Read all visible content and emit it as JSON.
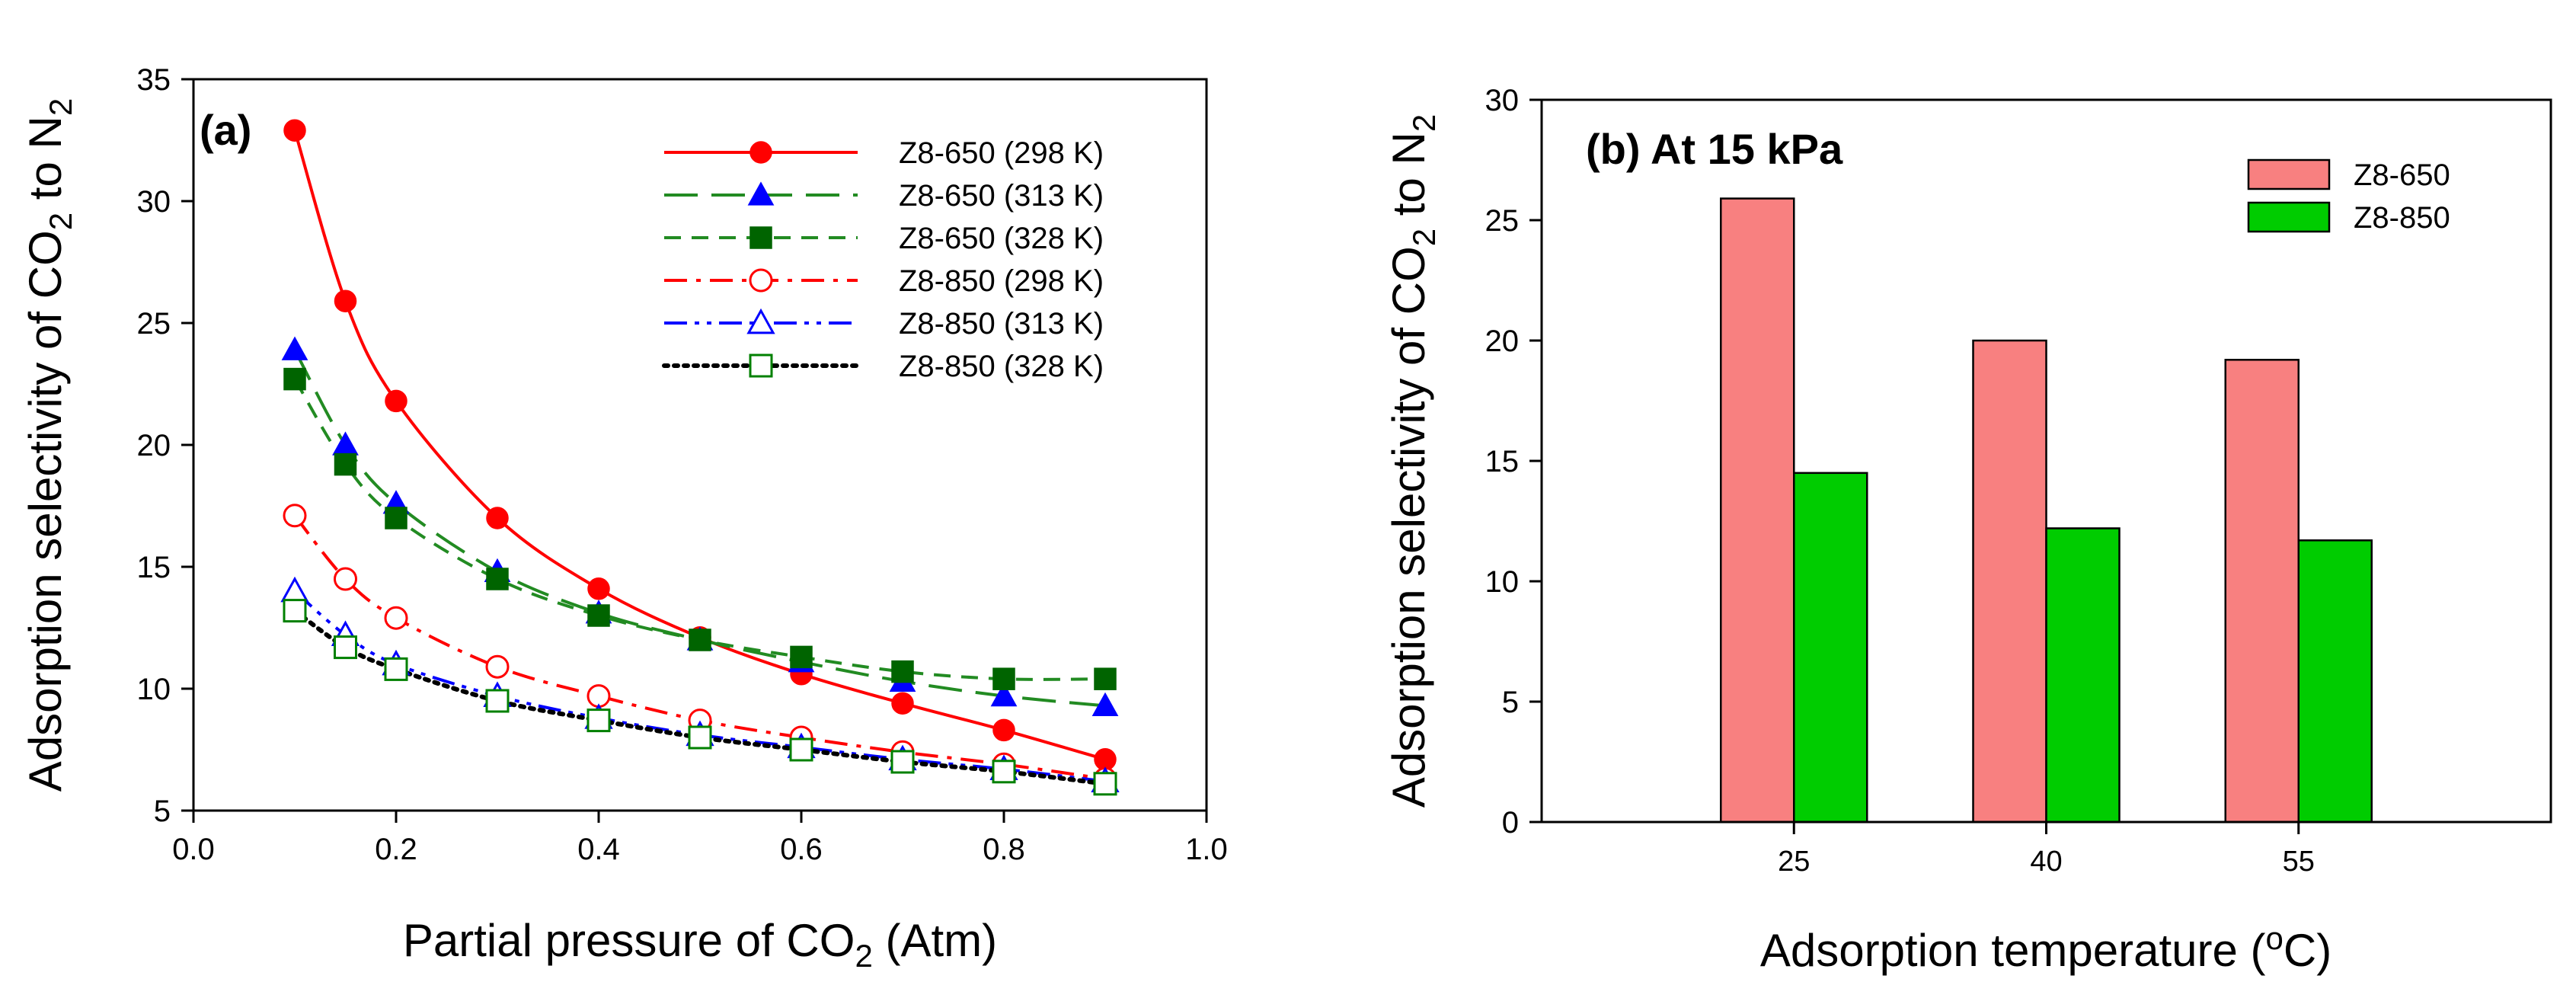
{
  "chart_data": [
    {
      "type": "line",
      "panel_label": "(a)",
      "xlabel": {
        "main": "Partial pressure of CO",
        "sub": "2",
        "suffix": " (Atm)"
      },
      "ylabel": {
        "main": "Adsorption selectivity of CO",
        "sub1": "2",
        "mid": " to N",
        "sub2": "2"
      },
      "xlim": [
        0.0,
        1.0
      ],
      "ylim": [
        5,
        35
      ],
      "xticks": [
        0.0,
        0.2,
        0.4,
        0.6,
        0.8,
        1.0
      ],
      "xtick_labels": [
        "0.0",
        "0.2",
        "0.4",
        "0.6",
        "0.8",
        "1.0"
      ],
      "yticks": [
        5,
        10,
        15,
        20,
        25,
        30,
        35
      ],
      "ytick_labels": [
        "5",
        "10",
        "15",
        "20",
        "25",
        "30",
        "35"
      ],
      "legend_position": "top-right",
      "x": [
        0.1,
        0.15,
        0.2,
        0.3,
        0.4,
        0.5,
        0.6,
        0.7,
        0.8,
        0.9
      ],
      "series": [
        {
          "name": "Z8-650 (298 K)",
          "color": "#ff0000",
          "marker": "circle",
          "filled": true,
          "dash": "solid",
          "values": [
            32.9,
            25.9,
            21.8,
            17.0,
            14.1,
            12.1,
            10.6,
            9.4,
            8.3,
            7.1
          ]
        },
        {
          "name": "Z8-650 (313 K)",
          "color": "#0000ff",
          "line_color": "#228b22",
          "marker": "triangle",
          "filled": true,
          "dash": "long-dash",
          "values": [
            23.9,
            20.0,
            17.6,
            14.8,
            13.1,
            12.0,
            11.1,
            10.3,
            9.7,
            9.3
          ]
        },
        {
          "name": "Z8-650 (328 K)",
          "color": "#006400",
          "line_color": "#228b22",
          "marker": "square",
          "filled": true,
          "dash": "short-dash",
          "values": [
            22.7,
            19.2,
            17.0,
            14.5,
            13.0,
            12.0,
            11.3,
            10.7,
            10.4,
            10.4
          ]
        },
        {
          "name": "Z8-850 (298 K)",
          "color": "#ff0000",
          "marker": "circle",
          "filled": false,
          "dash": "dash-dot",
          "values": [
            17.1,
            14.5,
            12.9,
            10.9,
            9.7,
            8.7,
            8.0,
            7.4,
            6.9,
            6.3
          ]
        },
        {
          "name": "Z8-850 (313 K)",
          "color": "#0000ff",
          "marker": "triangle",
          "filled": false,
          "dash": "dash-dot-dot",
          "values": [
            14.0,
            12.2,
            11.0,
            9.7,
            8.8,
            8.1,
            7.6,
            7.1,
            6.7,
            6.2
          ]
        },
        {
          "name": "Z8-850 (328 K)",
          "color": "#008000",
          "line_color": "#000000",
          "marker": "square",
          "filled": false,
          "dash": "dotted",
          "values": [
            13.2,
            11.7,
            10.8,
            9.5,
            8.7,
            8.0,
            7.5,
            7.0,
            6.6,
            6.1
          ]
        }
      ]
    },
    {
      "type": "bar",
      "panel_label": "(b) At 15 kPa",
      "xlabel": {
        "main": "Adsorption temperature (",
        "sup": "o",
        "suffix": "C)"
      },
      "ylabel": {
        "main": "Adsorption selectivity of CO",
        "sub1": "2",
        "mid": " to N",
        "sub2": "2"
      },
      "categories": [
        "25",
        "40",
        "55"
      ],
      "ylim": [
        0,
        30
      ],
      "yticks": [
        0,
        5,
        10,
        15,
        20,
        25,
        30
      ],
      "ytick_labels": [
        "0",
        "5",
        "10",
        "15",
        "20",
        "25",
        "30"
      ],
      "legend_position": "top-right",
      "series": [
        {
          "name": "Z8-650",
          "color": "#f88080",
          "values": [
            25.9,
            20.0,
            19.2
          ]
        },
        {
          "name": "Z8-850",
          "color": "#00cc00",
          "values": [
            14.5,
            12.2,
            11.7
          ]
        }
      ]
    }
  ]
}
